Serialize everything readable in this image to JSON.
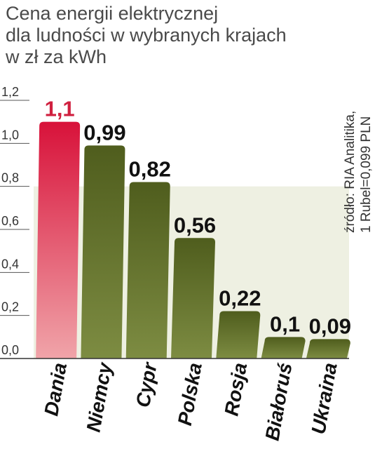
{
  "title_lines": [
    "Cena energii elektrycznej",
    "dla ludności w wybranych krajach",
    "w zł za kWh"
  ],
  "source_lines": [
    "źródło: RIA Analitika,",
    "1 Rubel=0,099 PLN"
  ],
  "colors": {
    "highlight": "#d0203f",
    "bar": "#5b6a26",
    "band": "#eef0e2",
    "axis": "#333333",
    "label": "#111111"
  },
  "chart_data": {
    "type": "bar",
    "title": "Cena energii elektrycznej dla ludności w wybranych krajach",
    "ylabel": "w zł za kWh",
    "xlabel": "",
    "categories": [
      "Dania",
      "Niemcy",
      "Cypr",
      "Polska",
      "Rosja",
      "Białoruś",
      "Ukraina"
    ],
    "values": [
      1.1,
      0.99,
      0.82,
      0.56,
      0.22,
      0.1,
      0.09
    ],
    "value_labels": [
      "1,1",
      "0,99",
      "0,82",
      "0,56",
      "0,22",
      "0,1",
      "0,09"
    ],
    "highlight": "Dania",
    "ylim": [
      0,
      1.2
    ],
    "yticks": [
      0,
      0.2,
      0.4,
      0.6,
      0.8,
      1.0,
      1.2
    ],
    "ytick_labels": [
      "0,0",
      "0,2",
      "0,4",
      "0,6",
      "0,8",
      "1,0",
      "1,2"
    ],
    "shaded_band": [
      0,
      0.8
    ],
    "grid": false,
    "legend": "none"
  }
}
